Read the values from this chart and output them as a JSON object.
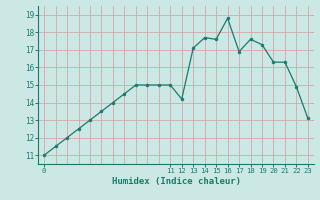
{
  "x": [
    0,
    1,
    2,
    3,
    4,
    5,
    6,
    7,
    8,
    9,
    10,
    11,
    12,
    13,
    14,
    15,
    16,
    17,
    18,
    19,
    20,
    21,
    22,
    23
  ],
  "y": [
    11.0,
    11.5,
    12.0,
    12.5,
    13.0,
    13.5,
    14.0,
    14.5,
    15.0,
    15.0,
    15.0,
    15.0,
    14.2,
    17.1,
    17.7,
    17.6,
    18.8,
    16.9,
    17.6,
    17.3,
    16.3,
    16.3,
    14.9,
    13.1
  ],
  "line_color": "#1a7a6e",
  "marker_color": "#1a7a6e",
  "bg_color": "#cce8e4",
  "grid_color_pink": "#d4a8a8",
  "xlabel": "Humidex (Indice chaleur)",
  "xlabel_color": "#1a7a6e",
  "ylabel_ticks": [
    11,
    12,
    13,
    14,
    15,
    16,
    17,
    18,
    19
  ],
  "xlim": [
    -0.5,
    23.5
  ],
  "ylim": [
    10.5,
    19.5
  ],
  "xtick_labels_left": [
    "0"
  ],
  "xtick_labels_right": [
    "11",
    "12",
    "13",
    "14",
    "15",
    "16",
    "17",
    "18",
    "19",
    "20",
    "21",
    "22",
    "23"
  ]
}
